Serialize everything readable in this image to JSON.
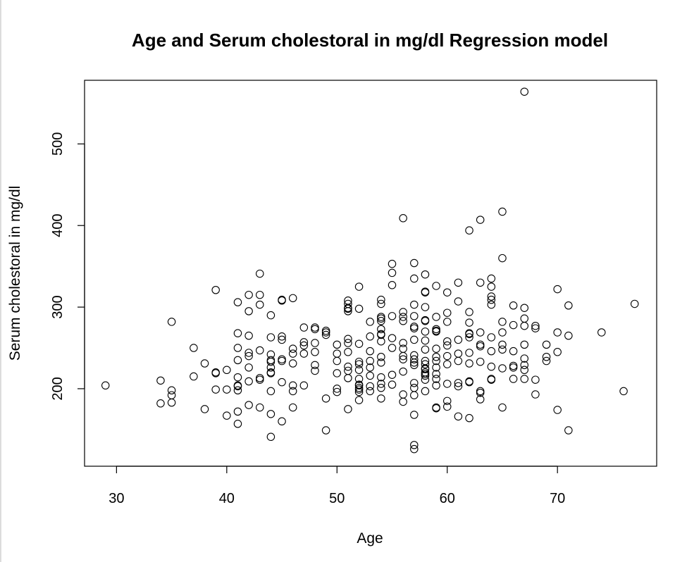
{
  "chart_data": {
    "type": "scatter",
    "title": "Age and Serum cholestoral in mg/dl Regression model",
    "xlabel": "Age",
    "ylabel": "Serum cholestoral in mg/dl",
    "xlim": [
      27.1,
      79.0
    ],
    "ylim": [
      105,
      578
    ],
    "xticks": [
      30,
      40,
      50,
      60,
      70
    ],
    "yticks": [
      200,
      300,
      400,
      500
    ],
    "marker": "open-circle",
    "grid": false,
    "legend": "none",
    "points": [
      [
        29,
        204
      ],
      [
        34,
        182
      ],
      [
        34,
        210
      ],
      [
        35,
        183
      ],
      [
        35,
        192
      ],
      [
        35,
        198
      ],
      [
        35,
        282
      ],
      [
        37,
        215
      ],
      [
        37,
        250
      ],
      [
        38,
        175
      ],
      [
        38,
        231
      ],
      [
        39,
        199
      ],
      [
        39,
        219
      ],
      [
        39,
        220
      ],
      [
        39,
        321
      ],
      [
        40,
        167
      ],
      [
        40,
        199
      ],
      [
        40,
        223
      ],
      [
        41,
        157
      ],
      [
        41,
        172
      ],
      [
        41,
        198
      ],
      [
        41,
        203
      ],
      [
        41,
        204
      ],
      [
        41,
        214
      ],
      [
        41,
        235
      ],
      [
        41,
        250
      ],
      [
        41,
        268
      ],
      [
        41,
        306
      ],
      [
        42,
        180
      ],
      [
        42,
        209
      ],
      [
        42,
        226
      ],
      [
        42,
        240
      ],
      [
        42,
        244
      ],
      [
        42,
        265
      ],
      [
        42,
        295
      ],
      [
        42,
        315
      ],
      [
        43,
        177
      ],
      [
        43,
        211
      ],
      [
        43,
        213
      ],
      [
        43,
        247
      ],
      [
        43,
        303
      ],
      [
        43,
        315
      ],
      [
        43,
        341
      ],
      [
        44,
        141
      ],
      [
        44,
        169
      ],
      [
        44,
        197
      ],
      [
        44,
        219
      ],
      [
        44,
        220
      ],
      [
        44,
        226
      ],
      [
        44,
        233
      ],
      [
        44,
        235
      ],
      [
        44,
        242
      ],
      [
        44,
        263
      ],
      [
        44,
        290
      ],
      [
        45,
        160
      ],
      [
        45,
        208
      ],
      [
        45,
        234
      ],
      [
        45,
        236
      ],
      [
        45,
        260
      ],
      [
        45,
        264
      ],
      [
        45,
        308
      ],
      [
        45,
        309
      ],
      [
        46,
        177
      ],
      [
        46,
        197
      ],
      [
        46,
        204
      ],
      [
        46,
        231
      ],
      [
        46,
        243
      ],
      [
        46,
        249
      ],
      [
        46,
        311
      ],
      [
        47,
        204
      ],
      [
        47,
        243
      ],
      [
        47,
        253
      ],
      [
        47,
        257
      ],
      [
        47,
        275
      ],
      [
        48,
        222
      ],
      [
        48,
        229
      ],
      [
        48,
        245
      ],
      [
        48,
        256
      ],
      [
        48,
        273
      ],
      [
        48,
        275
      ],
      [
        49,
        149
      ],
      [
        49,
        188
      ],
      [
        49,
        266
      ],
      [
        49,
        269
      ],
      [
        49,
        271
      ],
      [
        50,
        196
      ],
      [
        50,
        200
      ],
      [
        50,
        219
      ],
      [
        50,
        234
      ],
      [
        50,
        243
      ],
      [
        50,
        254
      ],
      [
        51,
        175
      ],
      [
        51,
        213
      ],
      [
        51,
        222
      ],
      [
        51,
        227
      ],
      [
        51,
        245
      ],
      [
        51,
        256
      ],
      [
        51,
        261
      ],
      [
        51,
        295
      ],
      [
        51,
        298
      ],
      [
        51,
        299
      ],
      [
        51,
        304
      ],
      [
        51,
        308
      ],
      [
        52,
        186
      ],
      [
        52,
        196
      ],
      [
        52,
        199
      ],
      [
        52,
        201
      ],
      [
        52,
        204
      ],
      [
        52,
        205
      ],
      [
        52,
        212
      ],
      [
        52,
        223
      ],
      [
        52,
        230
      ],
      [
        52,
        233
      ],
      [
        52,
        255
      ],
      [
        52,
        298
      ],
      [
        52,
        325
      ],
      [
        53,
        197
      ],
      [
        53,
        203
      ],
      [
        53,
        216
      ],
      [
        53,
        226
      ],
      [
        53,
        234
      ],
      [
        53,
        246
      ],
      [
        53,
        264
      ],
      [
        53,
        282
      ],
      [
        54,
        188
      ],
      [
        54,
        201
      ],
      [
        54,
        206
      ],
      [
        54,
        214
      ],
      [
        54,
        232
      ],
      [
        54,
        239
      ],
      [
        54,
        258
      ],
      [
        54,
        266
      ],
      [
        54,
        267
      ],
      [
        54,
        273
      ],
      [
        54,
        283
      ],
      [
        54,
        286
      ],
      [
        54,
        288
      ],
      [
        54,
        304
      ],
      [
        54,
        309
      ],
      [
        55,
        205
      ],
      [
        55,
        217
      ],
      [
        55,
        250
      ],
      [
        55,
        262
      ],
      [
        55,
        289
      ],
      [
        55,
        327
      ],
      [
        55,
        342
      ],
      [
        55,
        353
      ],
      [
        56,
        184
      ],
      [
        56,
        193
      ],
      [
        56,
        221
      ],
      [
        56,
        236
      ],
      [
        56,
        240
      ],
      [
        56,
        249
      ],
      [
        56,
        256
      ],
      [
        56,
        283
      ],
      [
        56,
        288
      ],
      [
        56,
        294
      ],
      [
        56,
        409
      ],
      [
        57,
        126
      ],
      [
        57,
        131
      ],
      [
        57,
        168
      ],
      [
        57,
        192
      ],
      [
        57,
        201
      ],
      [
        57,
        207
      ],
      [
        57,
        229
      ],
      [
        57,
        232
      ],
      [
        57,
        236
      ],
      [
        57,
        241
      ],
      [
        57,
        260
      ],
      [
        57,
        274
      ],
      [
        57,
        276
      ],
      [
        57,
        289
      ],
      [
        57,
        303
      ],
      [
        57,
        335
      ],
      [
        57,
        354
      ],
      [
        58,
        197
      ],
      [
        58,
        211
      ],
      [
        58,
        216
      ],
      [
        58,
        218
      ],
      [
        58,
        220
      ],
      [
        58,
        224
      ],
      [
        58,
        225
      ],
      [
        58,
        230
      ],
      [
        58,
        234
      ],
      [
        58,
        248
      ],
      [
        58,
        259
      ],
      [
        58,
        270
      ],
      [
        58,
        283
      ],
      [
        58,
        284
      ],
      [
        58,
        300
      ],
      [
        58,
        318
      ],
      [
        58,
        319
      ],
      [
        58,
        340
      ],
      [
        59,
        176
      ],
      [
        59,
        177
      ],
      [
        59,
        204
      ],
      [
        59,
        212
      ],
      [
        59,
        218
      ],
      [
        59,
        226
      ],
      [
        59,
        234
      ],
      [
        59,
        239
      ],
      [
        59,
        249
      ],
      [
        59,
        270
      ],
      [
        59,
        271
      ],
      [
        59,
        273
      ],
      [
        59,
        288
      ],
      [
        59,
        326
      ],
      [
        60,
        178
      ],
      [
        60,
        185
      ],
      [
        60,
        206
      ],
      [
        60,
        230
      ],
      [
        60,
        240
      ],
      [
        60,
        253
      ],
      [
        60,
        258
      ],
      [
        60,
        282
      ],
      [
        60,
        293
      ],
      [
        60,
        318
      ],
      [
        61,
        166
      ],
      [
        61,
        203
      ],
      [
        61,
        207
      ],
      [
        61,
        234
      ],
      [
        61,
        243
      ],
      [
        61,
        260
      ],
      [
        61,
        307
      ],
      [
        61,
        330
      ],
      [
        62,
        164
      ],
      [
        62,
        208
      ],
      [
        62,
        209
      ],
      [
        62,
        231
      ],
      [
        62,
        244
      ],
      [
        62,
        263
      ],
      [
        62,
        267
      ],
      [
        62,
        268
      ],
      [
        62,
        281
      ],
      [
        62,
        294
      ],
      [
        62,
        394
      ],
      [
        63,
        187
      ],
      [
        63,
        195
      ],
      [
        63,
        197
      ],
      [
        63,
        233
      ],
      [
        63,
        252
      ],
      [
        63,
        254
      ],
      [
        63,
        269
      ],
      [
        63,
        330
      ],
      [
        63,
        407
      ],
      [
        64,
        211
      ],
      [
        64,
        212
      ],
      [
        64,
        227
      ],
      [
        64,
        246
      ],
      [
        64,
        263
      ],
      [
        64,
        303
      ],
      [
        64,
        309
      ],
      [
        64,
        313
      ],
      [
        64,
        325
      ],
      [
        64,
        335
      ],
      [
        65,
        177
      ],
      [
        65,
        225
      ],
      [
        65,
        248
      ],
      [
        65,
        254
      ],
      [
        65,
        269
      ],
      [
        65,
        282
      ],
      [
        65,
        360
      ],
      [
        65,
        417
      ],
      [
        66,
        212
      ],
      [
        66,
        226
      ],
      [
        66,
        228
      ],
      [
        66,
        246
      ],
      [
        66,
        278
      ],
      [
        66,
        302
      ],
      [
        67,
        212
      ],
      [
        67,
        223
      ],
      [
        67,
        229
      ],
      [
        67,
        237
      ],
      [
        67,
        254
      ],
      [
        67,
        277
      ],
      [
        67,
        286
      ],
      [
        67,
        299
      ],
      [
        67,
        564
      ],
      [
        68,
        193
      ],
      [
        68,
        211
      ],
      [
        68,
        274
      ],
      [
        68,
        277
      ],
      [
        69,
        234
      ],
      [
        69,
        239
      ],
      [
        69,
        254
      ],
      [
        70,
        174
      ],
      [
        70,
        245
      ],
      [
        70,
        269
      ],
      [
        70,
        322
      ],
      [
        71,
        149
      ],
      [
        71,
        265
      ],
      [
        71,
        302
      ],
      [
        74,
        269
      ],
      [
        76,
        197
      ],
      [
        77,
        304
      ]
    ]
  }
}
